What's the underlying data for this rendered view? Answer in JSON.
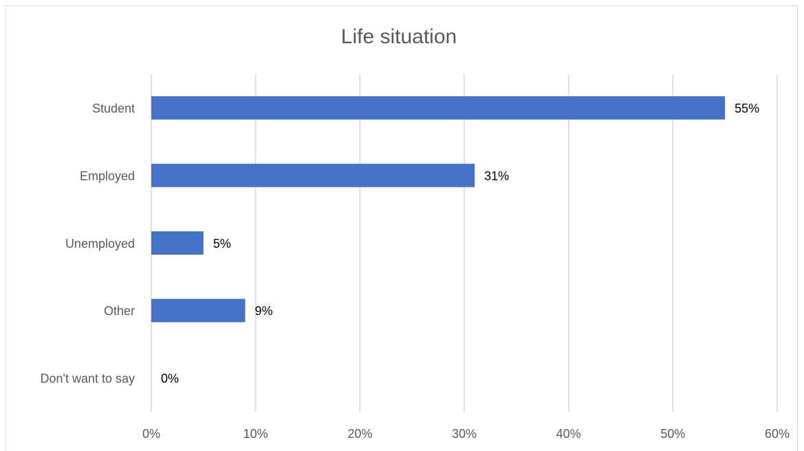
{
  "chart_data": {
    "type": "bar",
    "orientation": "horizontal",
    "title": "Life situation",
    "categories": [
      "Student",
      "Employed",
      "Unemployed",
      "Other",
      "Don't want to say"
    ],
    "values": [
      55,
      31,
      5,
      9,
      0
    ],
    "value_labels": [
      "55%",
      "31%",
      "5%",
      "9%",
      "0%"
    ],
    "color": "#4472c4",
    "xlim": [
      0,
      60
    ],
    "xticks": [
      {
        "value": 0,
        "label": "0%"
      },
      {
        "value": 10,
        "label": "10%"
      },
      {
        "value": 20,
        "label": "20%"
      },
      {
        "value": 30,
        "label": "30%"
      },
      {
        "value": 40,
        "label": "40%"
      },
      {
        "value": 50,
        "label": "50%"
      },
      {
        "value": 60,
        "label": "60%"
      }
    ],
    "grid": true
  }
}
